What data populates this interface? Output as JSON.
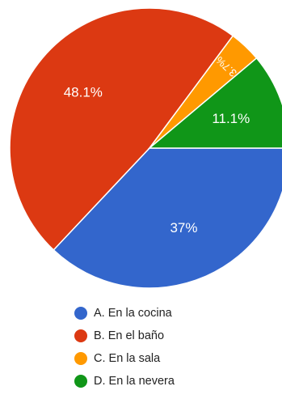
{
  "chart_data": {
    "type": "pie",
    "title": "",
    "slices": [
      {
        "label": "A. En la cocina",
        "value": 37,
        "display": "37%",
        "color": "#3366cc"
      },
      {
        "label": "B. En el baño",
        "value": 48.1,
        "display": "48.1%",
        "color": "#dc3912"
      },
      {
        "label": "C. En la sala",
        "value": 3.7,
        "display": "3.7%",
        "color": "#ff9900"
      },
      {
        "label": "D. En la nevera",
        "value": 11.1,
        "display": "11.1%",
        "color": "#109618"
      }
    ],
    "legend_position": "bottom"
  }
}
